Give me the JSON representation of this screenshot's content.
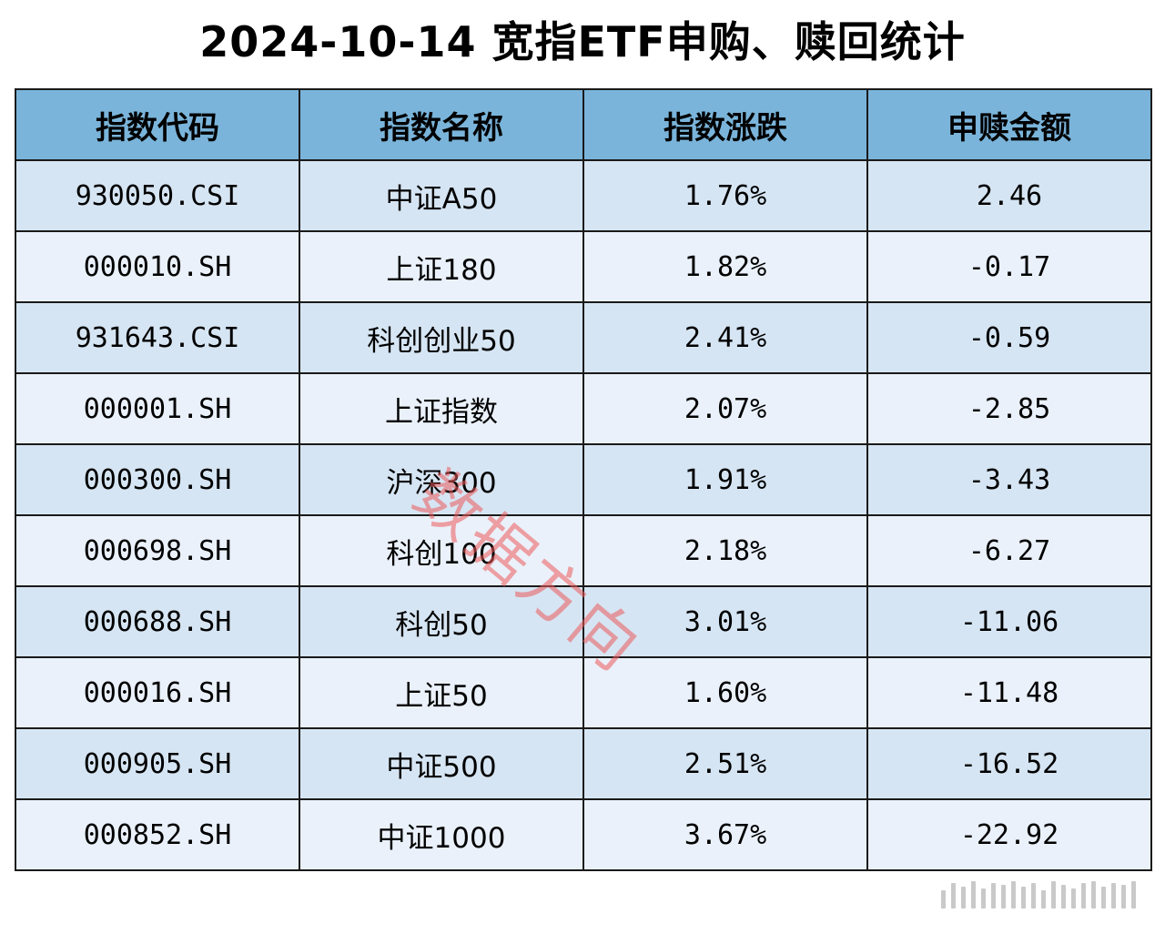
{
  "title": "2024-10-14 宽指ETF申购、赎回统计",
  "columns": [
    "指数代码",
    "指数名称",
    "指数涨跌",
    "申赎金额"
  ],
  "rows": [
    {
      "code": "930050.CSI",
      "name": "中证A50",
      "change": "1.76%",
      "amount": "2.46"
    },
    {
      "code": "000010.SH",
      "name": "上证180",
      "change": "1.82%",
      "amount": "-0.17"
    },
    {
      "code": "931643.CSI",
      "name": "科创创业50",
      "change": "2.41%",
      "amount": "-0.59"
    },
    {
      "code": "000001.SH",
      "name": "上证指数",
      "change": "2.07%",
      "amount": "-2.85"
    },
    {
      "code": "000300.SH",
      "name": "沪深300",
      "change": "1.91%",
      "amount": "-3.43"
    },
    {
      "code": "000698.SH",
      "name": "科创100",
      "change": "2.18%",
      "amount": "-6.27"
    },
    {
      "code": "000688.SH",
      "name": "科创50",
      "change": "3.01%",
      "amount": "-11.06"
    },
    {
      "code": "000016.SH",
      "name": "上证50",
      "change": "1.60%",
      "amount": "-11.48"
    },
    {
      "code": "000905.SH",
      "name": "中证500",
      "change": "2.51%",
      "amount": "-16.52"
    },
    {
      "code": "000852.SH",
      "name": "中证1000",
      "change": "3.67%",
      "amount": "-22.92"
    }
  ],
  "watermark": "数据方向",
  "colors": {
    "header_bg": "#7ab4da",
    "row_odd_bg": "#d6e5f3",
    "row_even_bg": "#eaf1fa",
    "watermark": "#ec5a5a"
  }
}
